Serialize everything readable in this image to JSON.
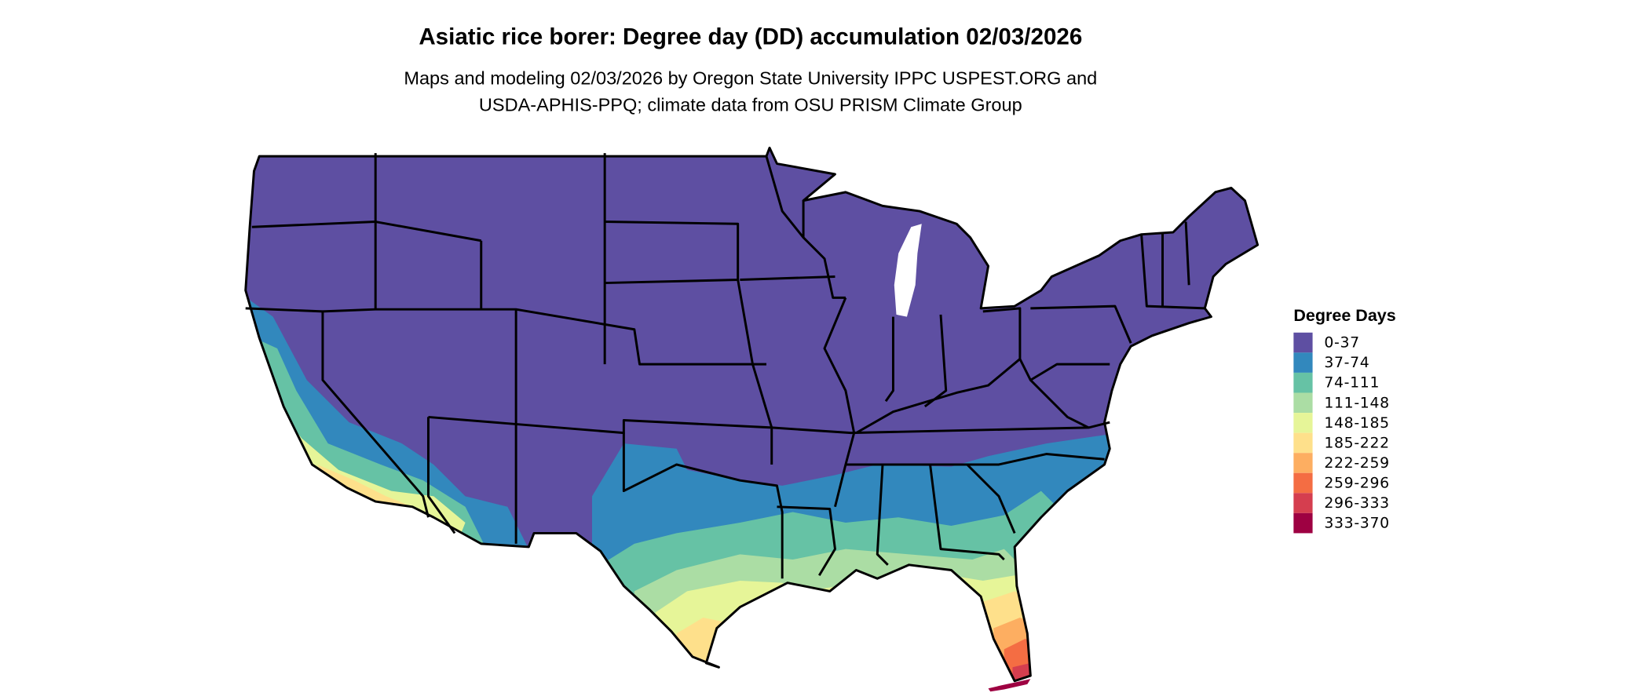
{
  "header": {
    "title": "Asiatic rice borer: Degree day (DD) accumulation 02/03/2026",
    "subtitle_line1": "Maps and modeling 02/03/2026 by Oregon State University IPPC USPEST.ORG and",
    "subtitle_line2": "USDA-APHIS-PPQ; climate data from OSU PRISM Climate Group"
  },
  "chart_data": {
    "type": "heatmap",
    "title": "Asiatic rice borer: Degree day (DD) accumulation 02/03/2026",
    "region": "Contiguous United States",
    "legend": {
      "title": "Degree Days",
      "placement": "right",
      "bins": [
        {
          "label": "0-37",
          "color": "#5e4fa2"
        },
        {
          "label": "37-74",
          "color": "#3288bd"
        },
        {
          "label": "74-111",
          "color": "#66c2a5"
        },
        {
          "label": "111-148",
          "color": "#abdda4"
        },
        {
          "label": "148-185",
          "color": "#e6f598"
        },
        {
          "label": "185-222",
          "color": "#fee08b"
        },
        {
          "label": "222-259",
          "color": "#fdae61"
        },
        {
          "label": "259-296",
          "color": "#f46d43"
        },
        {
          "label": "296-333",
          "color": "#d53e4f"
        },
        {
          "label": "333-370",
          "color": "#9e0142"
        }
      ]
    }
  }
}
